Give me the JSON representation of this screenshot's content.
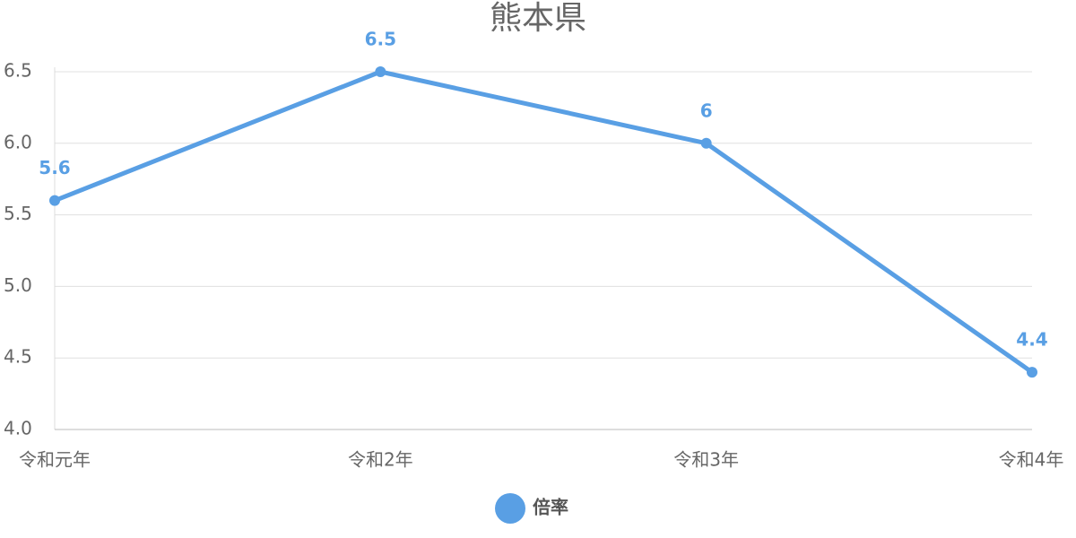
{
  "chart_data": {
    "type": "line",
    "title": "熊本県",
    "categories": [
      "令和元年",
      "令和2年",
      "令和3年",
      "令和4年"
    ],
    "series": [
      {
        "name": "倍率",
        "color": "#599fe4",
        "values": [
          5.6,
          6.5,
          6,
          4.4
        ]
      }
    ],
    "ylim": [
      4,
      6.5
    ],
    "yticks": [
      {
        "value": 4,
        "label": "4.0"
      },
      4.5,
      {
        "value": 5,
        "label": "5.0"
      },
      5.5,
      {
        "value": 6,
        "label": "6.0"
      },
      6.5
    ],
    "grid": true,
    "legend": "bottom"
  }
}
